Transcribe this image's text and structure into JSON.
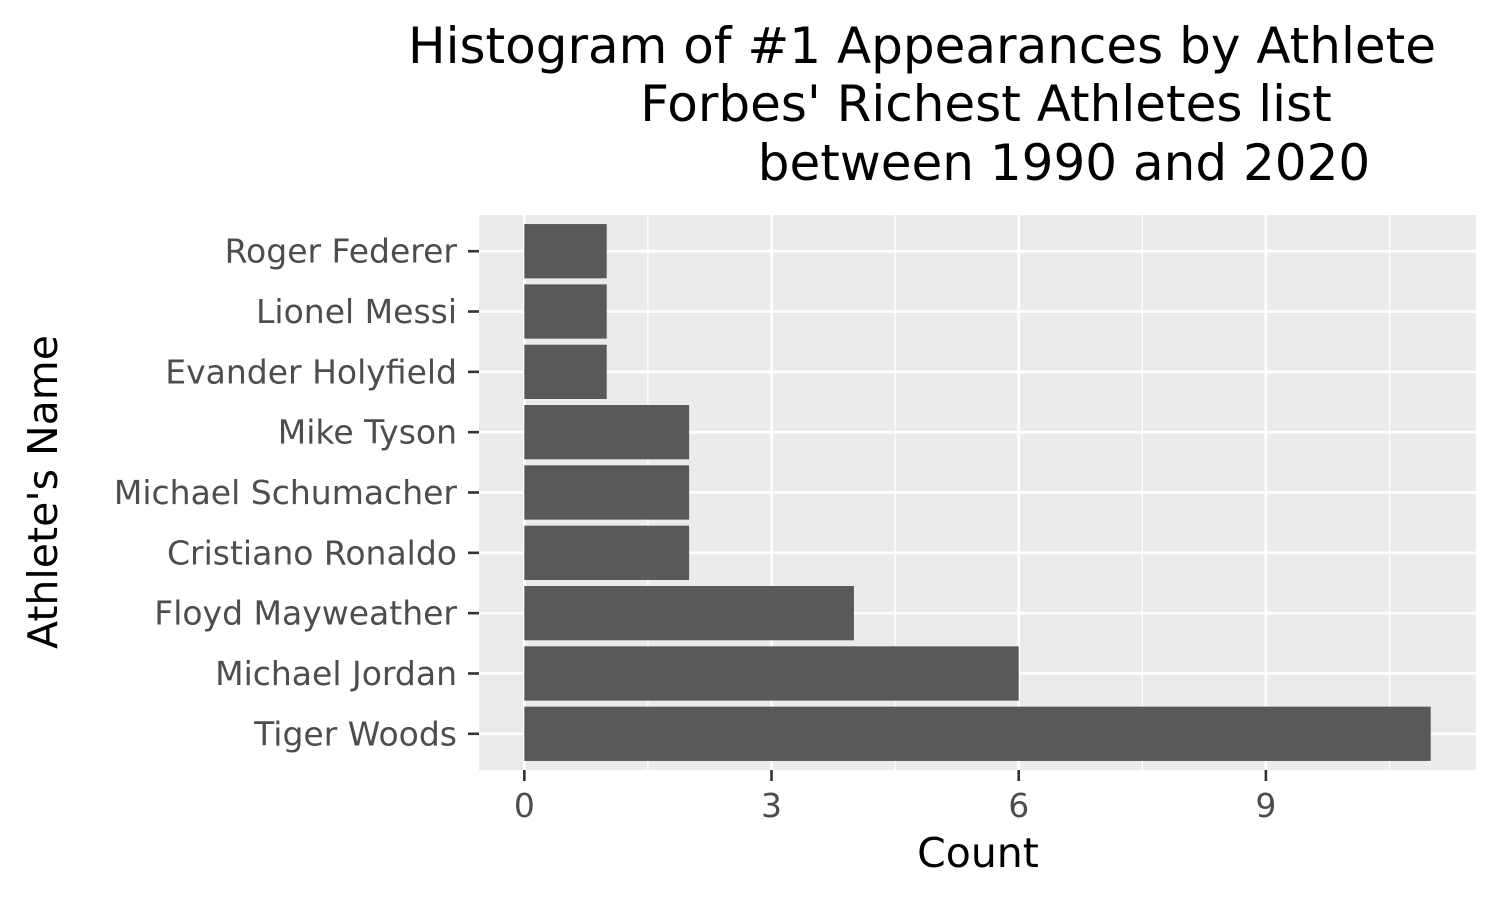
{
  "chart_data": {
    "type": "bar",
    "orientation": "horizontal",
    "title": [
      "Histogram of #1 Appearances by Athlete",
      "Forbes' Richest Athletes list",
      "between 1990 and 2020"
    ],
    "xlabel": "Count",
    "ylabel": "Athlete's Name",
    "categories": [
      "Tiger Woods",
      "Michael Jordan",
      "Floyd Mayweather",
      "Cristiano Ronaldo",
      "Michael Schumacher",
      "Mike Tyson",
      "Evander Holyfield",
      "Lionel Messi",
      "Roger Federer"
    ],
    "values": [
      11,
      6,
      4,
      2,
      2,
      2,
      1,
      1,
      1
    ],
    "xticks": [
      0,
      3,
      6,
      9
    ],
    "xlim": [
      -0.55,
      11.55
    ],
    "grid": true,
    "colors": {
      "bar": "#595959",
      "panel": "#ebebeb",
      "grid": "#ffffff",
      "tick_text": "#4d4d4d",
      "tick_mark": "#333333"
    }
  }
}
